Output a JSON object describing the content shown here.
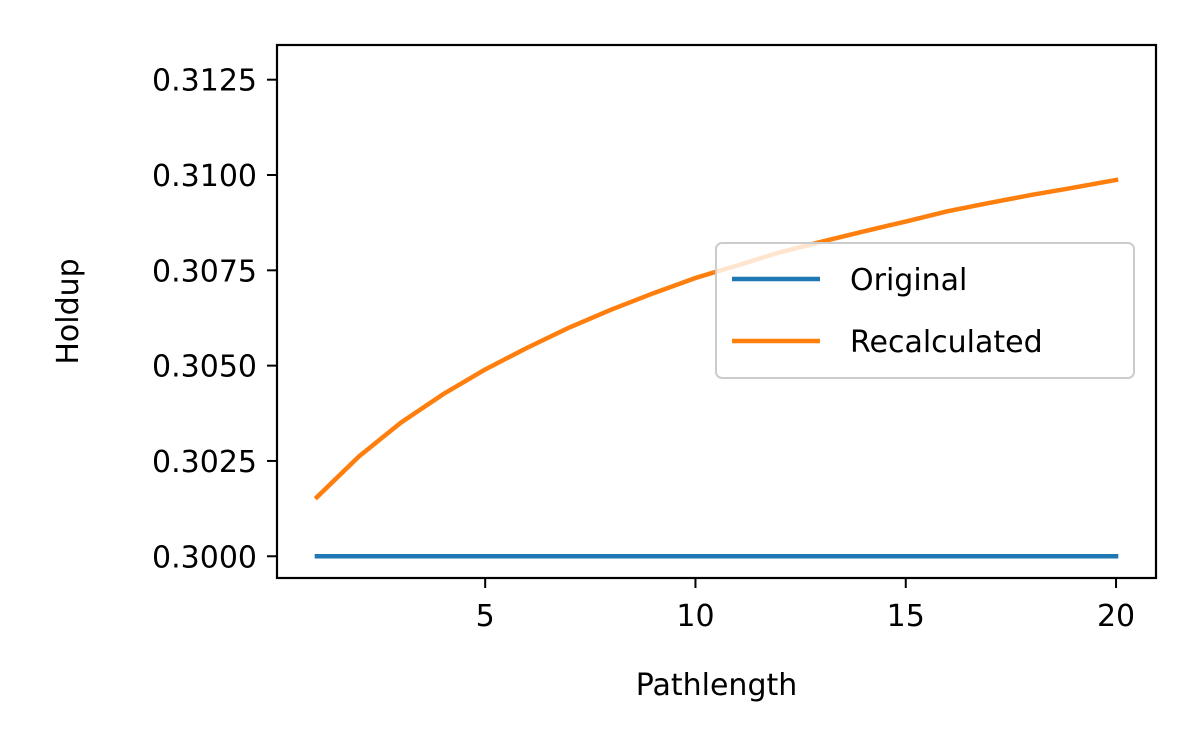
{
  "chart_data": {
    "type": "line",
    "title": "",
    "xlabel": "Pathlength",
    "ylabel": "Holdup",
    "xlim": [
      0.05,
      20.95
    ],
    "ylim": [
      0.29943,
      0.31341
    ],
    "xticks": [
      5,
      10,
      15,
      20
    ],
    "xtick_labels": [
      "5",
      "10",
      "15",
      "20"
    ],
    "yticks": [
      0.3,
      0.3025,
      0.305,
      0.3075,
      0.31,
      0.3125
    ],
    "ytick_labels": [
      "0.3000",
      "0.3025",
      "0.3050",
      "0.3075",
      "0.3100",
      "0.3125"
    ],
    "grid": false,
    "legend": {
      "placement": "center-right"
    },
    "series": [
      {
        "name": "Original",
        "color": "#1f77b4",
        "x": [
          1,
          20
        ],
        "y": [
          0.3,
          0.3
        ]
      },
      {
        "name": "Recalculated",
        "color": "#ff7f0e",
        "x": [
          1,
          2,
          3,
          4,
          5,
          6,
          7,
          8,
          9,
          10,
          11,
          12,
          13,
          14,
          15,
          16,
          17,
          18,
          19,
          20
        ],
        "y": [
          0.30155,
          0.30262,
          0.30351,
          0.30425,
          0.3049,
          0.30547,
          0.306,
          0.30647,
          0.3069,
          0.3073,
          0.30763,
          0.30797,
          0.30825,
          0.30852,
          0.30878,
          0.30905,
          0.30927,
          0.30948,
          0.30967,
          0.30987
        ]
      }
    ]
  }
}
